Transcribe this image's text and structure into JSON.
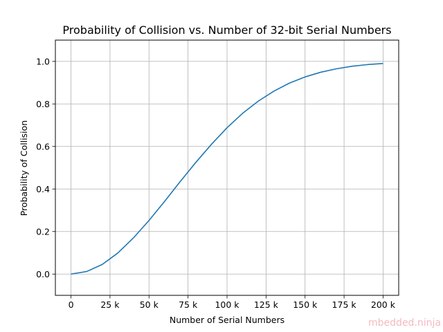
{
  "chart_data": {
    "type": "line",
    "title": "Probability of Collision vs. Number of 32-bit Serial Numbers",
    "xlabel": "Number of Serial Numbers",
    "ylabel": "Probability of Collision",
    "xlim": [
      -10000,
      210000
    ],
    "ylim": [
      -0.1,
      1.1
    ],
    "grid": true,
    "x_ticks": [
      0,
      25000,
      50000,
      75000,
      100000,
      125000,
      150000,
      175000,
      200000
    ],
    "x_tick_labels": [
      "0",
      "25 k",
      "50 k",
      "75 k",
      "100 k",
      "125 k",
      "150 k",
      "175 k",
      "200 k"
    ],
    "y_ticks": [
      0.0,
      0.2,
      0.4,
      0.6,
      0.8,
      1.0
    ],
    "y_tick_labels": [
      "0.0",
      "0.2",
      "0.4",
      "0.6",
      "0.8",
      "1.0"
    ],
    "series": [
      {
        "color": "#1f77b4",
        "x": [
          0,
          10000,
          20000,
          30000,
          40000,
          50000,
          60000,
          70000,
          80000,
          90000,
          100000,
          110000,
          120000,
          130000,
          140000,
          150000,
          160000,
          170000,
          180000,
          190000,
          200000
        ],
        "y": [
          0.0,
          0.012,
          0.045,
          0.099,
          0.17,
          0.252,
          0.342,
          0.435,
          0.525,
          0.61,
          0.688,
          0.756,
          0.813,
          0.86,
          0.898,
          0.927,
          0.949,
          0.965,
          0.977,
          0.985,
          0.99
        ]
      }
    ]
  },
  "watermark": "mbedded.ninja"
}
